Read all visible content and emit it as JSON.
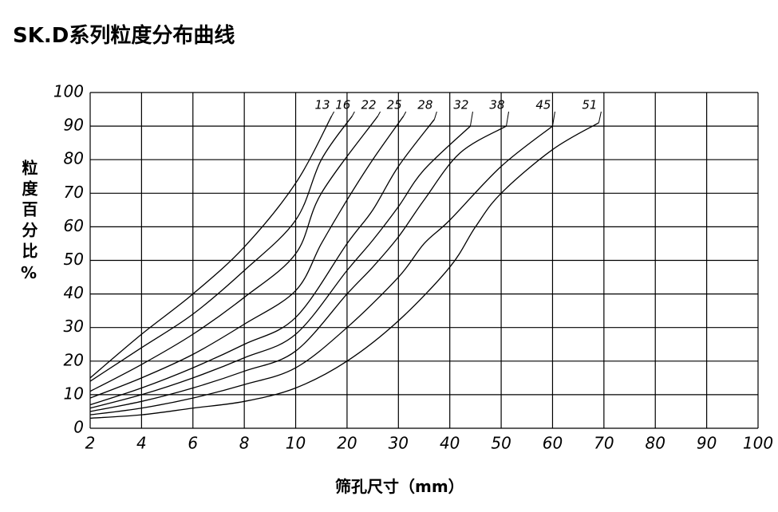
{
  "chart_data": {
    "type": "line",
    "title": "SK.D系列粒度分布曲线",
    "y_label": "粒度百分比%",
    "x_label": "筛孔尺寸（mm）",
    "xlim": [
      2,
      100
    ],
    "xticks": [
      2,
      4,
      6,
      8,
      10,
      20,
      30,
      40,
      50,
      60,
      70,
      80,
      90,
      100
    ],
    "ylim": [
      0,
      100
    ],
    "yticks": [
      0,
      10,
      20,
      30,
      40,
      50,
      60,
      70,
      80,
      90,
      100
    ],
    "grid": true,
    "series": [
      {
        "name": "13",
        "color": "#000000",
        "x": [
          2,
          4,
          6,
          8,
          10,
          17
        ],
        "values": [
          15,
          28,
          40,
          54,
          73,
          93
        ]
      },
      {
        "name": "16",
        "color": "#000000",
        "x": [
          2,
          4,
          6,
          8,
          10,
          15,
          21
        ],
        "values": [
          14,
          24,
          34,
          47,
          62,
          80,
          93
        ]
      },
      {
        "name": "22",
        "color": "#000000",
        "x": [
          2,
          4,
          6,
          8,
          10,
          15,
          26
        ],
        "values": [
          11,
          19,
          28,
          39,
          52,
          70,
          93
        ]
      },
      {
        "name": "25",
        "color": "#000000",
        "x": [
          2,
          4,
          6,
          8,
          10,
          15,
          20,
          25,
          31
        ],
        "values": [
          9,
          15,
          22,
          31,
          41,
          55,
          68,
          80,
          93
        ]
      },
      {
        "name": "28",
        "color": "#000000",
        "x": [
          2,
          4,
          6,
          8,
          10,
          20,
          25,
          30,
          37
        ],
        "values": [
          7,
          12,
          18,
          25,
          33,
          55,
          65,
          78,
          92
        ]
      },
      {
        "name": "32",
        "color": "#000000",
        "x": [
          2,
          4,
          6,
          8,
          10,
          20,
          25,
          30,
          35,
          44
        ],
        "values": [
          6,
          10,
          15,
          21,
          28,
          47,
          56,
          66,
          77,
          90
        ]
      },
      {
        "name": "38",
        "color": "#000000",
        "x": [
          2,
          4,
          6,
          8,
          10,
          20,
          25,
          30,
          35,
          42,
          51
        ],
        "values": [
          5,
          8,
          12,
          17,
          23,
          40,
          48,
          57,
          68,
          82,
          90
        ]
      },
      {
        "name": "45",
        "color": "#000000",
        "x": [
          2,
          4,
          6,
          8,
          10,
          20,
          30,
          35,
          40,
          50,
          60
        ],
        "values": [
          4,
          6,
          9,
          13,
          18,
          30,
          45,
          55,
          62,
          78,
          90
        ]
      },
      {
        "name": "51",
        "color": "#000000",
        "x": [
          2,
          4,
          6,
          8,
          10,
          20,
          30,
          40,
          45,
          50,
          60,
          69
        ],
        "values": [
          3,
          4,
          6,
          8,
          12,
          20,
          32,
          48,
          60,
          70,
          83,
          91
        ]
      }
    ]
  }
}
